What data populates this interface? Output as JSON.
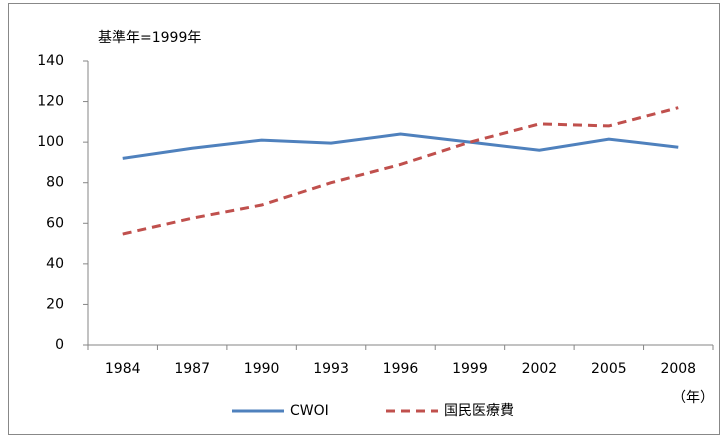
{
  "chart_data": {
    "type": "line",
    "annotation": "基準年=1999年",
    "x_unit_label": "（年）",
    "categories": [
      "1984",
      "1987",
      "1990",
      "1993",
      "1996",
      "1999",
      "2002",
      "2005",
      "2008"
    ],
    "series": [
      {
        "name": "CWOI",
        "color": "#4f81bd",
        "line_style": "solid",
        "values": [
          92,
          97,
          101,
          99.5,
          104,
          100,
          96,
          101.5,
          97.5
        ]
      },
      {
        "name": "国民医療費",
        "color": "#c0504d",
        "line_style": "dashed",
        "values": [
          54.7,
          62.5,
          69,
          80,
          89,
          100,
          109,
          108,
          117
        ]
      }
    ],
    "ylim": [
      0,
      140
    ],
    "yticks": [
      0,
      20,
      40,
      60,
      80,
      100,
      120,
      140
    ],
    "grid": false,
    "legend": "bottom"
  }
}
